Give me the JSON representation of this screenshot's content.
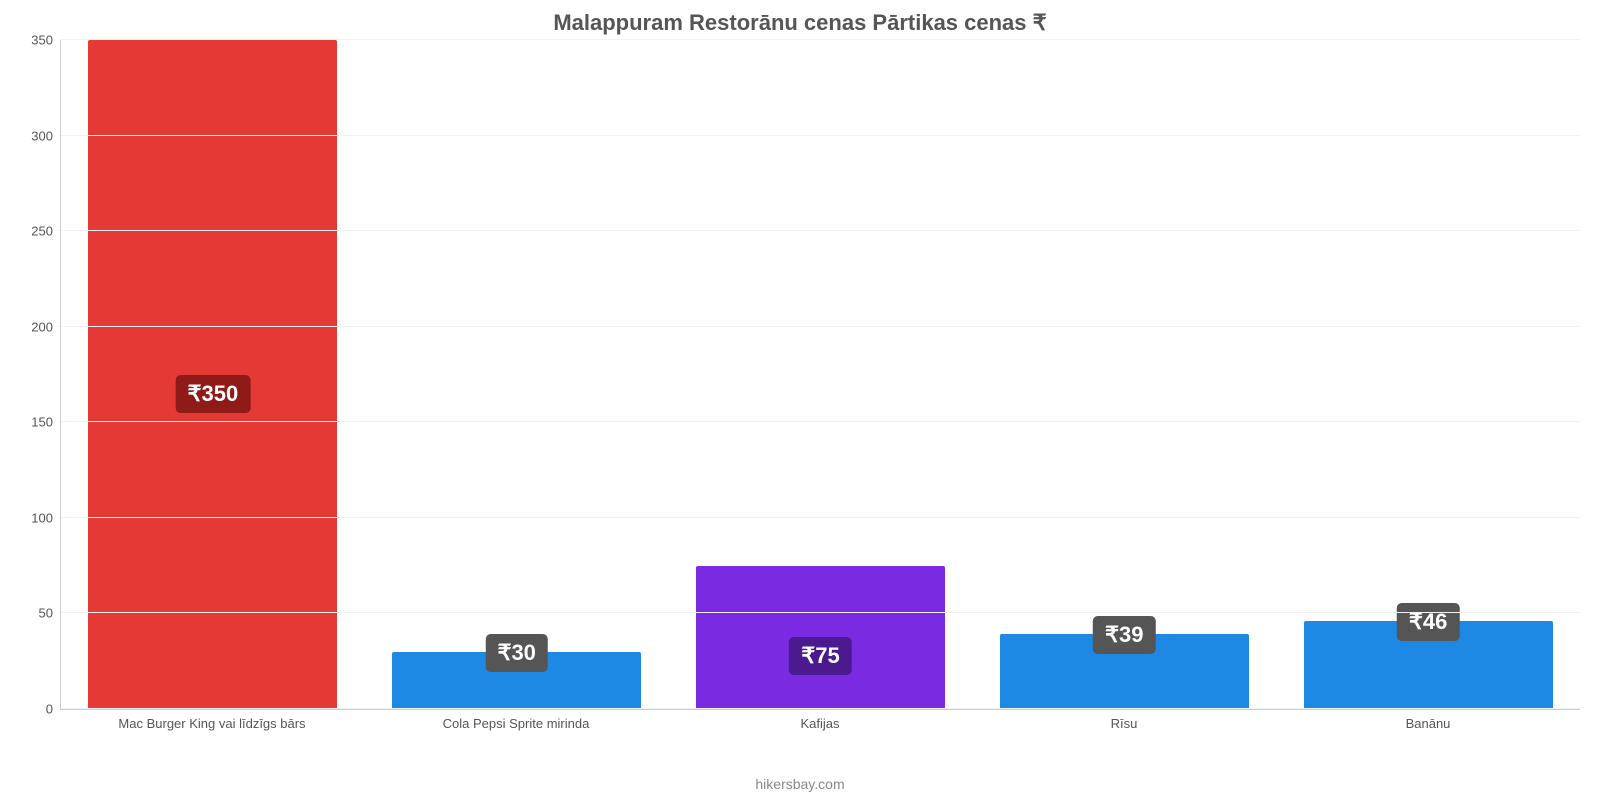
{
  "chart": {
    "type": "bar",
    "title": "Malappuram Restorānu cenas Pārtikas cenas ₹",
    "title_fontsize": 22,
    "title_color": "#555555",
    "background_color": "#ffffff",
    "grid_color": "#f2f2f2",
    "axis_color": "#cccccc",
    "label_color": "#555555",
    "label_fontsize": 13,
    "ylim": [
      0,
      350
    ],
    "ytick_step": 50,
    "yticks": [
      0,
      50,
      100,
      150,
      200,
      250,
      300,
      350
    ],
    "bar_width_pct": 82,
    "categories": [
      "Mac Burger King vai līdzīgs bārs",
      "Cola Pepsi Sprite mirinda",
      "Kafijas",
      "Rīsu",
      "Banānu"
    ],
    "values": [
      350,
      30,
      75,
      39,
      46
    ],
    "value_labels": [
      "₹350",
      "₹30",
      "₹75",
      "₹39",
      "₹46"
    ],
    "bar_colors": [
      "#e53935",
      "#1e88e5",
      "#7a2be2",
      "#1e88e5",
      "#1e88e5"
    ],
    "badge_colors": [
      "#8e1b18",
      "#555555",
      "#4a1a8e",
      "#555555",
      "#555555"
    ],
    "badge_fontsize": 22,
    "credit": "hikersbay.com",
    "credit_color": "#888888"
  }
}
